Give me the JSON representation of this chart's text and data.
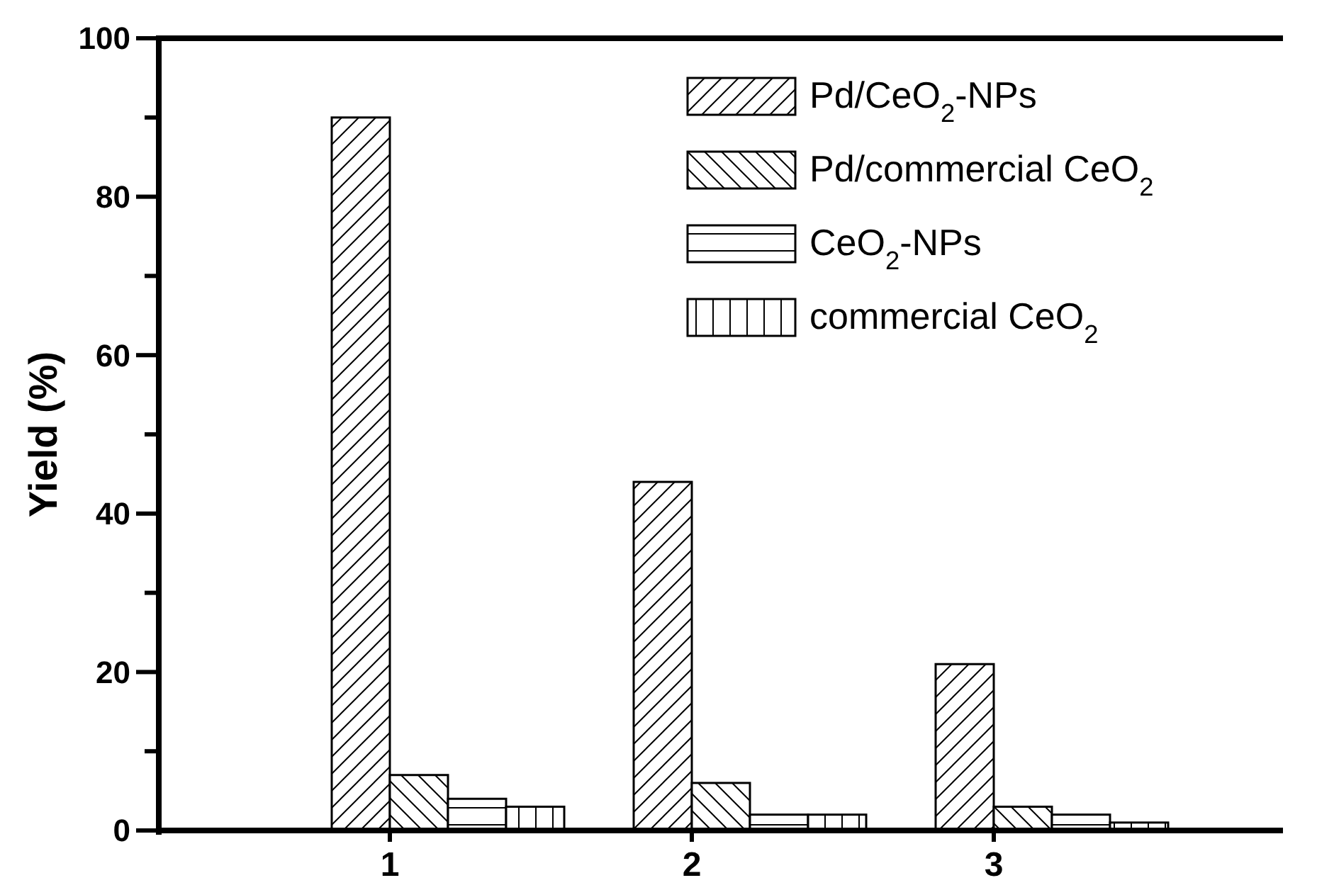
{
  "chart_data": {
    "type": "bar",
    "ylabel": "Yield (%)",
    "categories": [
      "1",
      "2",
      "3"
    ],
    "series": [
      {
        "name": "Pd/CeO$_{2}$-NPs",
        "color": "#000000",
        "values": [
          90,
          44,
          21
        ]
      },
      {
        "name": "Pd/commercial CeO$_{2}$",
        "color": "#000000",
        "values": [
          7,
          6,
          3
        ]
      },
      {
        "name": "CeO$_{2}$-NPs",
        "color": "#000000",
        "values": [
          4,
          2,
          2
        ]
      },
      {
        "name": "commercial CeO$_{2}$",
        "color": "#000000",
        "values": [
          3,
          2,
          1
        ]
      }
    ],
    "ylim": [
      0,
      100
    ],
    "yticks": [
      0,
      {
        "value": 10,
        "label": null
      },
      20,
      {
        "value": 30,
        "label": null
      },
      40,
      {
        "value": 50,
        "label": null
      },
      60,
      {
        "value": 70,
        "label": null
      },
      80,
      {
        "value": 90,
        "label": null
      },
      100
    ],
    "legend": "top right"
  }
}
